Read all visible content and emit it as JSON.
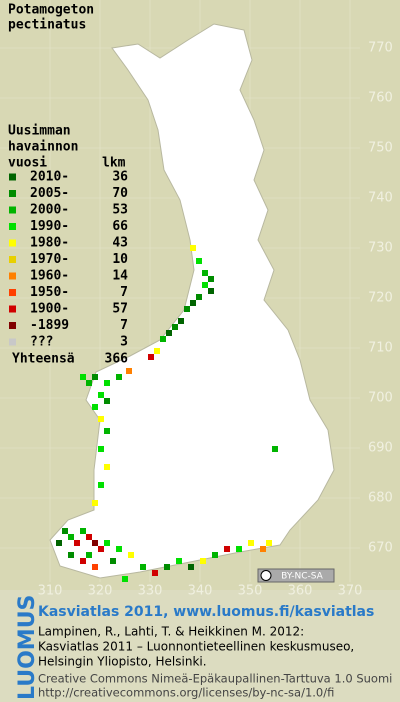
{
  "title": [
    "Potamogeton",
    "pectinatus"
  ],
  "legend": {
    "heading": [
      "Uusimman",
      "havainnon",
      "vuosi"
    ],
    "count_heading": "lkm",
    "rows": [
      {
        "label": "2010-",
        "count": 36,
        "color": "#006400"
      },
      {
        "label": "2005-",
        "count": 70,
        "color": "#008c00"
      },
      {
        "label": "2000-",
        "count": 53,
        "color": "#00b400"
      },
      {
        "label": "1990-",
        "count": 66,
        "color": "#00e000"
      },
      {
        "label": "1980-",
        "count": 43,
        "color": "#ffff00"
      },
      {
        "label": "1970-",
        "count": 10,
        "color": "#e8d000"
      },
      {
        "label": "1960-",
        "count": 14,
        "color": "#ff8000"
      },
      {
        "label": "1950-",
        "count": 7,
        "color": "#ff4000"
      },
      {
        "label": "1900-",
        "count": 57,
        "color": "#d00000"
      },
      {
        "label": "-1899",
        "count": 7,
        "color": "#800000"
      },
      {
        "label": "???",
        "count": 3,
        "color": "#c8c8c8"
      }
    ],
    "total": {
      "label": "Yhteensä",
      "count": 366
    }
  },
  "y_grid": [
    770,
    760,
    750,
    740,
    730,
    720,
    710,
    700,
    690,
    680,
    670
  ],
  "x_grid": [
    310,
    320,
    330,
    340,
    350,
    360,
    370
  ],
  "license_badge": "BY-NC-SA",
  "logo": "LUOMUS",
  "footer": {
    "link": "Kasviatlas 2011, www.luomus.fi/kasviatlas",
    "citation": [
      "Lampinen, R., Lahti, T. & Heikkinen M. 2012:",
      "Kasviatlas 2011 – Luonnontieteellinen keskusmuseo,",
      "Helsingin Yliopisto, Helsinki."
    ],
    "license": [
      "Creative Commons Nimeä-Epäkaupallinen-Tarttuva 1.0 Suomi",
      "http://creativecommons.org/licenses/by-nc-sa/1.0/fi"
    ]
  }
}
